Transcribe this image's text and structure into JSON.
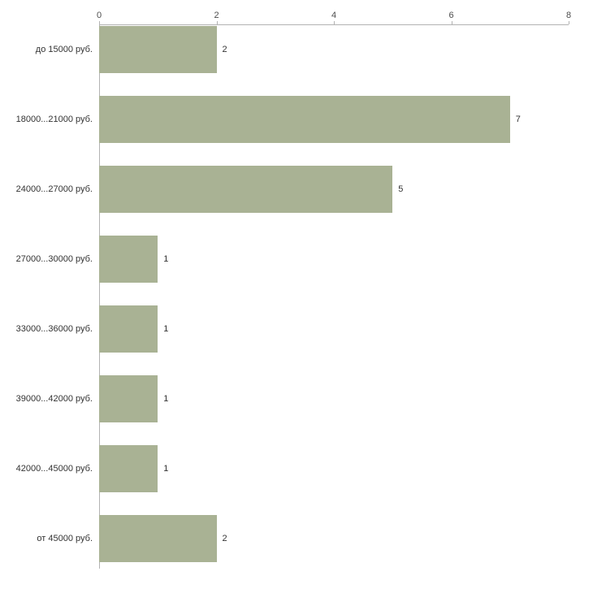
{
  "chart_data": {
    "type": "bar",
    "orientation": "horizontal",
    "title": "",
    "xlabel": "",
    "ylabel": "",
    "categories": [
      "до 15000 руб.",
      "18000...21000 руб.",
      "24000...27000 руб.",
      "27000...30000 руб.",
      "33000...36000 руб.",
      "39000...42000 руб.",
      "42000...45000 руб.",
      "от 45000 руб."
    ],
    "values": [
      2,
      7,
      5,
      1,
      1,
      1,
      1,
      2
    ],
    "value_labels_shown": true,
    "xlim": [
      0,
      8
    ],
    "x_ticks": [
      0,
      2,
      4,
      6,
      8
    ],
    "grid": false,
    "legend": false,
    "bar_color": "#a9b294",
    "axis_color": "#b3b3b3",
    "label_color": "#333333"
  }
}
